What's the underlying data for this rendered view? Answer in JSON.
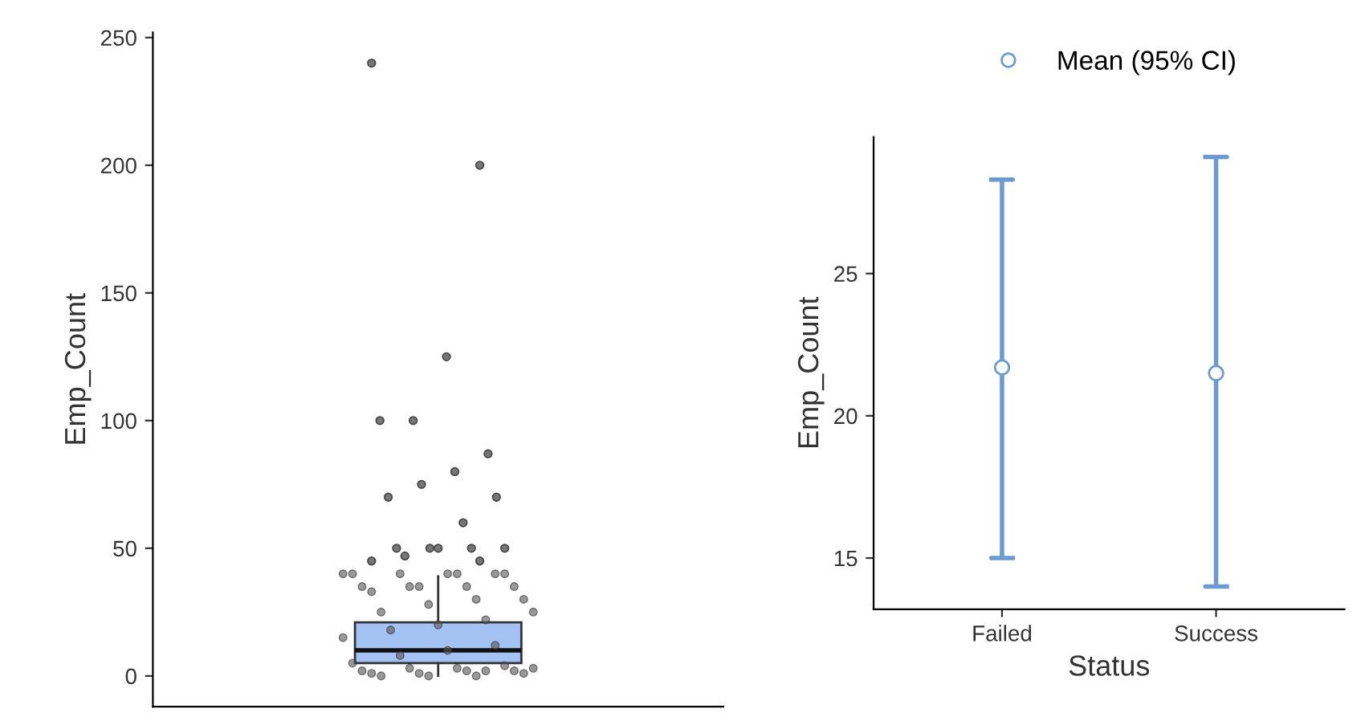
{
  "chart_data": [
    {
      "type": "box",
      "ylabel": "Emp_Count",
      "categories": [
        null
      ],
      "ylim": [
        -12,
        252
      ],
      "yticks": [
        0,
        50,
        100,
        150,
        200,
        250
      ],
      "color": "#a4c2f4",
      "grid": false,
      "legend": false,
      "boxes": [
        {
          "low": 0,
          "q1": 5,
          "median": 10,
          "q3": 21,
          "high": 39,
          "outliers": [
            240,
            200,
            125,
            100,
            100,
            87,
            80,
            75,
            70,
            70,
            60,
            50,
            50,
            50,
            50,
            50,
            47,
            45,
            45
          ]
        }
      ],
      "series": [
        {
          "type": "scatter",
          "color": "#555555",
          "x": [
            null,
            null,
            null,
            null,
            null,
            null,
            null,
            null,
            null,
            null,
            null,
            null,
            null,
            null,
            null,
            null,
            null,
            null,
            null,
            null,
            null,
            null,
            null,
            null,
            null,
            null,
            null,
            null,
            null,
            null,
            null,
            null,
            null,
            null,
            null,
            null,
            null,
            null,
            null,
            null
          ],
          "values": [
            40,
            40,
            40,
            40,
            40,
            40,
            40,
            35,
            35,
            35,
            35,
            35,
            33,
            30,
            30,
            28,
            25,
            25,
            22,
            20,
            18,
            15,
            12,
            10,
            8,
            5,
            4,
            3,
            3,
            2,
            2,
            2,
            1,
            1,
            1,
            0,
            0,
            0,
            3,
            2
          ]
        }
      ]
    },
    {
      "type": "scatter",
      "xlabel": "Status",
      "ylabel": "Emp_Count",
      "categories": [
        "Failed",
        "Success"
      ],
      "ylim": [
        13.2,
        29.8
      ],
      "yticks": [
        15,
        20,
        25
      ],
      "grid": false,
      "legend": "top",
      "marker": "circle",
      "series": [
        {
          "name": "Mean (95% CI)",
          "color": "#6b9bd1",
          "values": [
            21.7,
            21.5
          ],
          "errors": [
            [
              15.0,
              28.3
            ],
            [
              14.0,
              29.1
            ]
          ]
        }
      ]
    }
  ]
}
